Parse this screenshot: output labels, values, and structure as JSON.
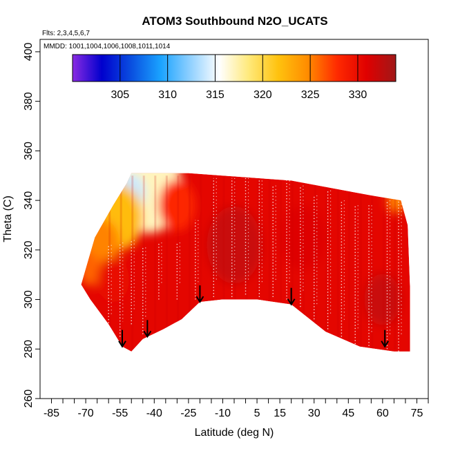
{
  "chart_data": {
    "type": "heatmap",
    "title": "ATOM3 Southbound N2O_UCATS",
    "flights_note": "Flts: 2,3,4,5,6,7",
    "dates_note": "MMDD: 1001,1004,1006,1008,1011,1014",
    "xlabel": "Latitude (deg N)",
    "ylabel": "Theta (C)",
    "xlim": [
      -90,
      80
    ],
    "ylim": [
      260,
      405
    ],
    "x_ticks": [
      -85,
      -70,
      -55,
      -40,
      -25,
      -10,
      5,
      15,
      30,
      45,
      60,
      75
    ],
    "y_ticks": [
      260,
      280,
      300,
      320,
      340,
      360,
      380,
      400
    ],
    "colorbar": {
      "range": [
        300,
        334
      ],
      "tick_values": [
        305,
        310,
        315,
        320,
        325,
        330
      ],
      "colors": [
        "#8a2be2",
        "#0000cd",
        "#0a4fe0",
        "#1aa3ff",
        "#8fd0ff",
        "#ffffff",
        "#ffe97a",
        "#ffc20e",
        "#ff8c00",
        "#ff2a00",
        "#e00000",
        "#a01818"
      ]
    },
    "domain_outline": [
      {
        "lat": -72,
        "theta": 306
      },
      {
        "lat": -66,
        "theta": 325
      },
      {
        "lat": -58,
        "theta": 338
      },
      {
        "lat": -52,
        "theta": 347
      },
      {
        "lat": -50,
        "theta": 351
      },
      {
        "lat": -25,
        "theta": 351
      },
      {
        "lat": 20,
        "theta": 348
      },
      {
        "lat": 55,
        "theta": 342
      },
      {
        "lat": 68,
        "theta": 340
      },
      {
        "lat": 71,
        "theta": 330
      },
      {
        "lat": 72,
        "theta": 305
      },
      {
        "lat": 72,
        "theta": 279
      },
      {
        "lat": 65,
        "theta": 279
      },
      {
        "lat": 50,
        "theta": 281
      },
      {
        "lat": 35,
        "theta": 287
      },
      {
        "lat": 20,
        "theta": 298
      },
      {
        "lat": 5,
        "theta": 300
      },
      {
        "lat": -10,
        "theta": 300
      },
      {
        "lat": -20,
        "theta": 299
      },
      {
        "lat": -28,
        "theta": 292
      },
      {
        "lat": -36,
        "theta": 288
      },
      {
        "lat": -45,
        "theta": 284
      },
      {
        "lat": -50,
        "theta": 279
      },
      {
        "lat": -54,
        "theta": 281
      },
      {
        "lat": -60,
        "theta": 290
      },
      {
        "lat": -68,
        "theta": 300
      },
      {
        "lat": -72,
        "theta": 306
      }
    ],
    "field_blobs": [
      {
        "lat": -42,
        "theta": 345,
        "value": 317,
        "r": 14
      },
      {
        "lat": -50,
        "theta": 343,
        "value": 314,
        "r": 6
      },
      {
        "lat": -55,
        "theta": 333,
        "value": 322,
        "r": 10
      },
      {
        "lat": -63,
        "theta": 322,
        "value": 325,
        "r": 8
      },
      {
        "lat": -68,
        "theta": 312,
        "value": 326,
        "r": 5
      },
      {
        "lat": -30,
        "theta": 338,
        "value": 328,
        "r": 8
      },
      {
        "lat": -58,
        "theta": 308,
        "value": 330,
        "r": 7
      },
      {
        "lat": -5,
        "theta": 322,
        "value": 332,
        "r": 12
      },
      {
        "lat": 25,
        "theta": 325,
        "value": 331,
        "r": 10
      },
      {
        "lat": 60,
        "theta": 300,
        "value": 332,
        "r": 8
      },
      {
        "lat": 66,
        "theta": 340,
        "value": 325,
        "r": 4
      }
    ],
    "arrows": [
      {
        "lat": -54,
        "theta": 281
      },
      {
        "lat": -43,
        "theta": 285
      },
      {
        "lat": -20,
        "theta": 299
      },
      {
        "lat": 20,
        "theta": 298
      },
      {
        "lat": 61,
        "theta": 281
      }
    ],
    "profiles": [
      {
        "lat": -60,
        "theta_bottom": 288,
        "theta_top": 322
      },
      {
        "lat": -55,
        "theta_bottom": 285,
        "theta_top": 323
      },
      {
        "lat": -50,
        "theta_bottom": 290,
        "theta_top": 324
      },
      {
        "lat": -45,
        "theta_bottom": 286,
        "theta_top": 321
      },
      {
        "lat": -38,
        "theta_bottom": 300,
        "theta_top": 323
      },
      {
        "lat": -30,
        "theta_bottom": 300,
        "theta_top": 323
      },
      {
        "lat": -22,
        "theta_bottom": 300,
        "theta_top": 332
      },
      {
        "lat": -14,
        "theta_bottom": 301,
        "theta_top": 349
      },
      {
        "lat": -6,
        "theta_bottom": 301,
        "theta_top": 349
      },
      {
        "lat": 0,
        "theta_bottom": 302,
        "theta_top": 349
      },
      {
        "lat": 6,
        "theta_bottom": 301,
        "theta_top": 348
      },
      {
        "lat": 12,
        "theta_bottom": 301,
        "theta_top": 346
      },
      {
        "lat": 18,
        "theta_bottom": 300,
        "theta_top": 348
      },
      {
        "lat": 24,
        "theta_bottom": 297,
        "theta_top": 346
      },
      {
        "lat": 30,
        "theta_bottom": 292,
        "theta_top": 342
      },
      {
        "lat": 36,
        "theta_bottom": 288,
        "theta_top": 344
      },
      {
        "lat": 42,
        "theta_bottom": 285,
        "theta_top": 340
      },
      {
        "lat": 48,
        "theta_bottom": 282,
        "theta_top": 338
      },
      {
        "lat": 54,
        "theta_bottom": 280,
        "theta_top": 338
      },
      {
        "lat": 62,
        "theta_bottom": 280,
        "theta_top": 340
      },
      {
        "lat": 67,
        "theta_bottom": 279,
        "theta_top": 340
      }
    ]
  }
}
